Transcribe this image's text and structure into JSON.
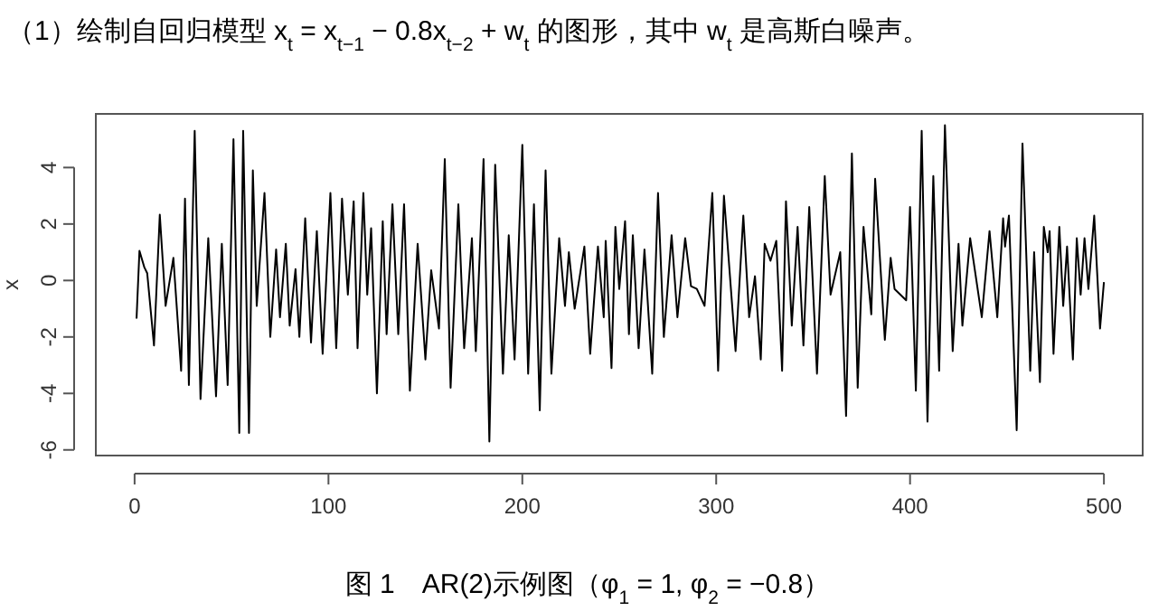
{
  "chart_data": {
    "type": "line",
    "title": "（1）绘制自回归模型 x$_{t}$ = x$_{t−1}$ − 0.8x$_{t−2}$ + w$_{t}$ 的图形，其中 w$_{t}$ 是高斯白噪声。",
    "ylabel": "x",
    "annotations": [
      "图 1　AR(2)示例图（φ$_{1}$ = 1, φ$_{2}$ = −0.8）"
    ],
    "xlim": [
      -20,
      520
    ],
    "ylim": [
      -6.2,
      5.9
    ],
    "xticks": [
      0,
      100,
      200,
      300,
      400,
      500
    ],
    "yticks": [
      -6,
      -4,
      -2,
      0,
      2,
      4
    ],
    "grid": false,
    "marker": "none",
    "line_style": "solid",
    "series": [
      {
        "color": "#000000",
        "x": [
          1,
          2.5,
          5,
          6.5,
          10,
          13,
          16,
          20,
          24,
          26,
          28,
          31,
          34,
          38,
          42,
          45,
          48,
          51,
          54,
          56,
          59,
          61,
          63,
          67,
          70,
          73,
          75,
          78,
          80,
          83,
          85,
          88,
          91,
          94,
          97,
          101,
          104,
          107,
          110,
          113,
          115,
          118,
          120,
          122,
          125,
          128,
          130,
          133,
          136,
          139,
          142,
          146,
          150,
          153,
          157,
          160,
          163,
          167,
          170,
          174,
          176,
          180,
          183,
          186,
          190,
          193,
          196,
          200,
          203,
          206,
          209,
          212,
          215,
          219,
          222,
          224,
          227,
          232,
          235,
          239,
          242,
          243,
          246,
          248,
          250,
          253,
          255,
          257,
          260,
          263,
          267,
          270,
          273,
          277,
          280,
          284,
          287,
          290,
          294,
          298,
          301,
          304,
          310,
          314,
          317,
          320,
          323,
          325,
          328,
          331,
          334,
          336,
          339,
          342,
          345,
          348,
          352,
          356,
          359,
          364,
          367,
          370,
          373,
          376,
          380,
          382,
          387,
          390,
          392,
          398,
          400,
          403,
          406,
          409,
          412,
          415,
          418,
          422,
          425,
          427,
          431,
          437,
          441,
          445,
          448,
          449,
          451,
          455,
          458,
          462,
          464,
          467,
          469,
          471,
          472,
          474,
          477,
          479,
          481,
          484,
          486,
          488,
          490,
          492,
          495,
          498,
          500
        ],
        "values": [
          -1.35,
          1.05,
          0.47,
          0.26,
          -2.3,
          2.33,
          -0.9,
          0.8,
          -3.2,
          2.9,
          -3.7,
          5.3,
          -4.2,
          1.5,
          -4.1,
          1.3,
          -3.7,
          5.0,
          -5.4,
          5.3,
          -5.4,
          3.9,
          -0.9,
          3.1,
          -2.0,
          1.1,
          -1.3,
          1.3,
          -1.6,
          0.4,
          -2.0,
          2.2,
          -2.2,
          1.75,
          -2.6,
          3.1,
          -2.4,
          2.9,
          -0.5,
          2.8,
          -2.4,
          3.1,
          -0.5,
          1.85,
          -4.0,
          2.1,
          -1.9,
          2.7,
          -1.9,
          2.7,
          -3.9,
          1.3,
          -2.8,
          0.36,
          -1.7,
          4.3,
          -3.8,
          2.7,
          -2.4,
          1.5,
          -2.5,
          4.3,
          -5.7,
          4.1,
          -3.3,
          1.6,
          -2.8,
          4.8,
          -3.3,
          2.7,
          -4.6,
          3.9,
          -3.3,
          1.5,
          -0.9,
          1.0,
          -1.0,
          1.2,
          -2.6,
          1.2,
          -1.3,
          1.4,
          -3.1,
          1.9,
          -0.3,
          2.1,
          -1.9,
          1.6,
          -2.4,
          1.1,
          -3.3,
          3.1,
          -2.0,
          1.6,
          -1.3,
          1.5,
          -0.2,
          -0.3,
          -0.9,
          3.1,
          -3.2,
          3.0,
          -2.5,
          2.3,
          -1.3,
          0.15,
          -2.8,
          1.3,
          0.7,
          1.4,
          -3.2,
          2.8,
          -1.6,
          1.9,
          -2.3,
          2.6,
          -3.3,
          3.7,
          -0.5,
          1.0,
          -4.8,
          4.5,
          -3.8,
          1.9,
          -1.2,
          3.6,
          -2.1,
          0.8,
          -0.3,
          -0.7,
          2.6,
          -3.9,
          5.3,
          -5.0,
          3.7,
          -3.2,
          5.5,
          -2.5,
          1.3,
          -1.6,
          1.5,
          -1.3,
          1.75,
          -1.3,
          2.2,
          1.2,
          2.3,
          -5.3,
          4.85,
          -3.2,
          1.0,
          -3.6,
          1.9,
          1.0,
          1.75,
          -2.6,
          1.9,
          -0.9,
          1.2,
          -2.8,
          1.5,
          -0.5,
          1.5,
          -0.3,
          2.3,
          -1.7,
          -0.06
        ]
      }
    ]
  }
}
